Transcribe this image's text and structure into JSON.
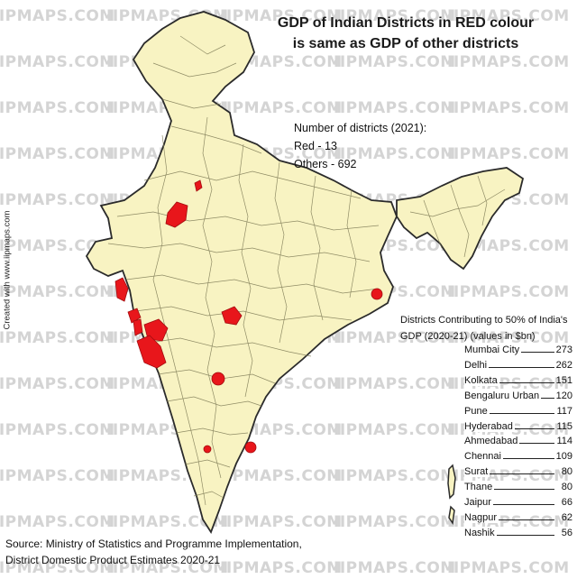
{
  "watermark": "IIPMAPS.COM",
  "title_line1": "GDP of Indian Districts in RED colour",
  "title_line2": "is same as GDP of other districts",
  "counts": {
    "heading": "Number of districts (2021):",
    "red": "Red - 13",
    "others": "Others - 692"
  },
  "side_credit": "Created with www.iipmaps.com",
  "legend": {
    "title_line1": "Districts Contributing to 50% of India's",
    "title_line2": "GDP (2020-21) (values in $bn)",
    "items": [
      {
        "name": "Mumbai City",
        "value": "273"
      },
      {
        "name": "Delhi",
        "value": "262"
      },
      {
        "name": "Kolkata",
        "value": "151"
      },
      {
        "name": "Bengaluru Urban",
        "value": "120"
      },
      {
        "name": "Pune",
        "value": "117"
      },
      {
        "name": "Hyderabad",
        "value": "115"
      },
      {
        "name": "Ahmedabad",
        "value": "114"
      },
      {
        "name": "Chennai",
        "value": "109"
      },
      {
        "name": "Surat",
        "value": "80"
      },
      {
        "name": "Thane",
        "value": "80"
      },
      {
        "name": "Jaipur",
        "value": "66"
      },
      {
        "name": "Nagpur",
        "value": "62"
      },
      {
        "name": "Nashik",
        "value": "56"
      }
    ]
  },
  "source_line1": "Source: Ministry of Statistics and Programme Implementation,",
  "source_line2": "District Domestic Product Estimates 2020-21",
  "colors": {
    "land": "#f8f3c2",
    "border": "#2b2b2b",
    "district_line": "#7d7a55",
    "highlight": "#e8161b",
    "watermark": "#d4d4d4"
  }
}
